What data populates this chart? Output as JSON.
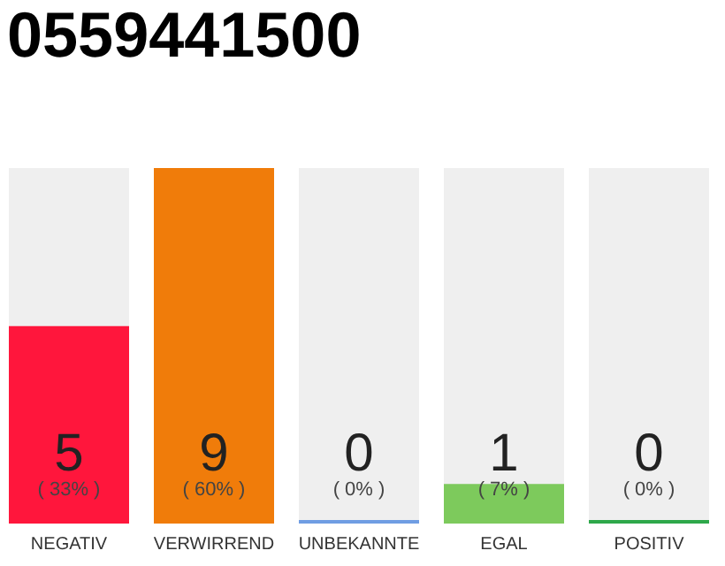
{
  "chart_data": {
    "type": "bar",
    "title": "0559441500",
    "categories": [
      "NEGATIV",
      "VERWIRREND",
      "UNBEKANNTE",
      "EGAL",
      "POSITIV"
    ],
    "values": [
      5,
      9,
      0,
      1,
      0
    ],
    "colors": [
      "#ff163c",
      "#f07c0a",
      "#6f9de3",
      "#7dca5c",
      "#2ea84a"
    ],
    "data_labels": true,
    "annotations": [
      "( 33% )",
      "( 60% )",
      "( 0% )",
      "( 7% )",
      "( 0% )"
    ],
    "tick_labels": "x",
    "grid": false
  }
}
